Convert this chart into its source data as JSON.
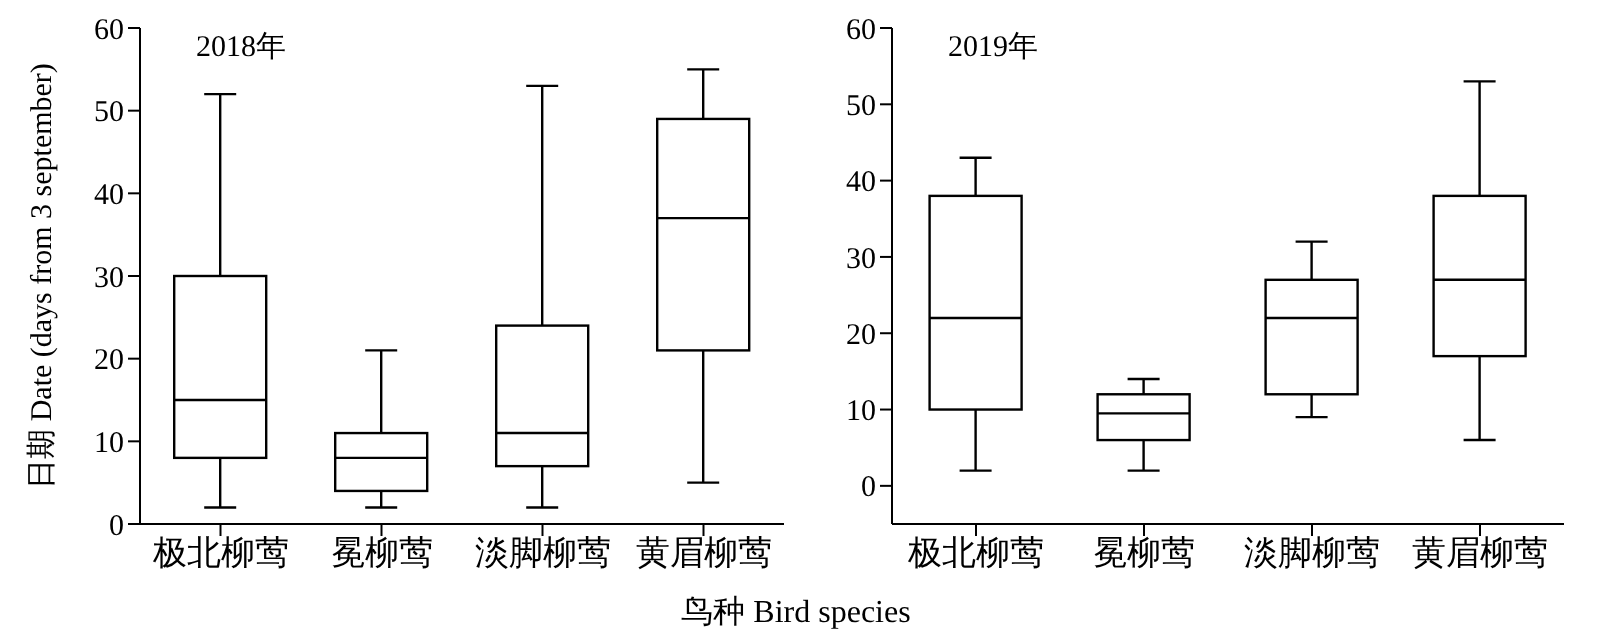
{
  "chart_data": [
    {
      "type": "box",
      "ylabel": "日期 Date (days from 3 september)",
      "xlabel": "鸟种 Bird species",
      "annotations": [
        "2018年"
      ],
      "categories": [
        "极北柳莺",
        "冕柳莺",
        "淡脚柳莺",
        "黄眉柳莺"
      ],
      "ylim": [
        0,
        60
      ],
      "yticks": [
        0,
        10,
        20,
        30,
        40,
        50,
        60
      ],
      "grid": false,
      "legend": false,
      "boxes": [
        {
          "low": 2,
          "q1": 8,
          "median": 15,
          "q3": 30,
          "high": 52
        },
        {
          "low": 2,
          "q1": 4,
          "median": 8,
          "q3": 11,
          "high": 21
        },
        {
          "low": 2,
          "q1": 7,
          "median": 11,
          "q3": 24,
          "high": 53
        },
        {
          "low": 5,
          "q1": 21,
          "median": 37,
          "q3": 49,
          "high": 55
        }
      ]
    },
    {
      "type": "box",
      "annotations": [
        "2019年"
      ],
      "categories": [
        "极北柳莺",
        "冕柳莺",
        "淡脚柳莺",
        "黄眉柳莺"
      ],
      "ylim": [
        -5,
        60
      ],
      "yticks": [
        0,
        10,
        20,
        30,
        40,
        50,
        60
      ],
      "grid": false,
      "legend": false,
      "boxes": [
        {
          "low": 2,
          "q1": 10,
          "median": 22,
          "q3": 38,
          "high": 43
        },
        {
          "low": 2,
          "q1": 6,
          "median": 9.5,
          "q3": 12,
          "high": 14
        },
        {
          "low": 9,
          "q1": 12,
          "median": 22,
          "q3": 27,
          "high": 32
        },
        {
          "low": 6,
          "q1": 17,
          "median": 27,
          "q3": 38,
          "high": 53
        }
      ]
    }
  ]
}
